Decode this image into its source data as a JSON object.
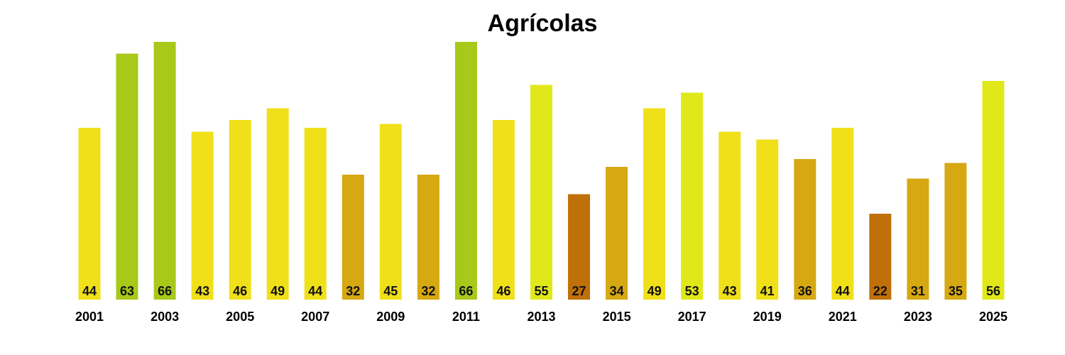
{
  "chart_data": {
    "type": "bar",
    "title": "Agrícolas",
    "xlabel": "",
    "ylabel": "",
    "grid": false,
    "categories": [
      "2001",
      "2002",
      "2003",
      "2004",
      "2005",
      "2006",
      "2007",
      "2008",
      "2009",
      "2010",
      "2011",
      "2012",
      "2013",
      "2014",
      "2015",
      "2016",
      "2017",
      "2018",
      "2019",
      "2020",
      "2021",
      "2022",
      "2023",
      "2024",
      "2025"
    ],
    "values": [
      44,
      63,
      66,
      43,
      46,
      49,
      44,
      32,
      45,
      32,
      66,
      46,
      55,
      27,
      34,
      49,
      53,
      43,
      41,
      36,
      44,
      22,
      31,
      35,
      56
    ],
    "tick_labels": [
      "2001",
      "",
      "2003",
      "",
      "2005",
      "",
      "2007",
      "",
      "2009",
      "",
      "2011",
      "",
      "2013",
      "",
      "2015",
      "",
      "2017",
      "",
      "2019",
      "",
      "2021",
      "",
      "2023",
      "",
      "2025"
    ],
    "bar_colors": [
      "#F0E01A",
      "#A8C81A",
      "#A8C81A",
      "#F0E01A",
      "#F0E01A",
      "#F0E01A",
      "#F0E01A",
      "#D6A812",
      "#F0E01A",
      "#D6A812",
      "#A8C81A",
      "#F0E01A",
      "#E0E81A",
      "#C07008",
      "#D6A812",
      "#F0E01A",
      "#E0E81A",
      "#F0E01A",
      "#F0E01A",
      "#D6A812",
      "#F0E01A",
      "#C07008",
      "#D6A812",
      "#D6A812",
      "#E0E81A"
    ],
    "ylim": [
      0,
      66
    ]
  }
}
